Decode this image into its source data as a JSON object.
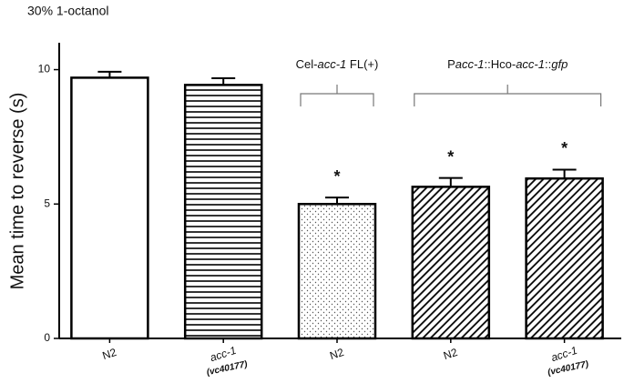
{
  "chart_data": {
    "type": "bar",
    "title": "30% 1-octanol",
    "ylabel": "Mean time to reverse (s)",
    "categories": [
      [
        {
          "text": "N2"
        }
      ],
      [
        {
          "text": "acc-1",
          "italic": true
        }
      ],
      [
        {
          "text": "N2"
        }
      ],
      [
        {
          "text": "N2"
        }
      ],
      [
        {
          "text": "acc-1",
          "italic": true
        }
      ]
    ],
    "category_sublabels": [
      null,
      "(vc40177)",
      null,
      null,
      "(vc40177)"
    ],
    "values": [
      9.7,
      9.43,
      5.0,
      5.64,
      5.95
    ],
    "errors": [
      0.22,
      0.25,
      0.24,
      0.33,
      0.33
    ],
    "patterns": [
      "none",
      "horizontal",
      "dots",
      "diagonal",
      "diagonal"
    ],
    "color": "#000000",
    "significance": [
      null,
      null,
      "*",
      "*",
      "*"
    ],
    "groups": [
      {
        "label": [
          {
            "text": "Cel-"
          },
          {
            "text": "acc-1",
            "italic": true
          },
          {
            "text": " FL(+)"
          }
        ],
        "start": 2,
        "end": 2
      },
      {
        "label": [
          {
            "text": "P"
          },
          {
            "text": "acc-1",
            "italic": true
          },
          {
            "text": "::Hco-"
          },
          {
            "text": "acc-1",
            "italic": true
          },
          {
            "text": "::"
          },
          {
            "text": "gfp",
            "italic": true
          }
        ],
        "start": 3,
        "end": 4
      }
    ],
    "ylim": [
      0,
      11
    ],
    "yticks": [
      0,
      5,
      10
    ]
  }
}
